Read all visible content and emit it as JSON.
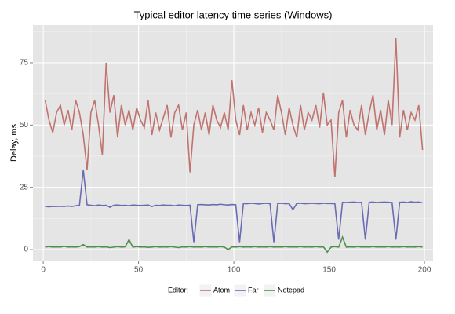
{
  "chart_data": {
    "type": "line",
    "title": "Typical editor latency time series (Windows)",
    "y_label": "Delay, ms",
    "legend_title": "Editor:",
    "legend": "bottom",
    "grid": true,
    "x": [
      1,
      3,
      5,
      7,
      9,
      11,
      13,
      15,
      17,
      19,
      21,
      23,
      25,
      27,
      29,
      31,
      33,
      35,
      37,
      39,
      41,
      43,
      45,
      47,
      49,
      51,
      53,
      55,
      57,
      59,
      61,
      63,
      65,
      67,
      69,
      71,
      73,
      75,
      77,
      79,
      81,
      83,
      85,
      87,
      89,
      91,
      93,
      95,
      97,
      99,
      101,
      103,
      105,
      107,
      109,
      111,
      113,
      115,
      117,
      119,
      121,
      123,
      125,
      127,
      129,
      131,
      133,
      135,
      137,
      139,
      141,
      143,
      145,
      147,
      149,
      151,
      153,
      155,
      157,
      159,
      161,
      163,
      165,
      167,
      169,
      171,
      173,
      175,
      177,
      179,
      181,
      183,
      185,
      187,
      189,
      191,
      193,
      195,
      197,
      199
    ],
    "xlim": [
      -5.4,
      204.5
    ],
    "xticks": [
      0,
      50,
      100,
      150,
      200
    ],
    "ylim": [
      -4.4,
      90.1
    ],
    "yticks": [
      0,
      25,
      50,
      75
    ],
    "series": [
      {
        "name": "Atom",
        "color": "#c0736f",
        "values": [
          60,
          52,
          47,
          55,
          58,
          50,
          56,
          48,
          60,
          55,
          46,
          32,
          55,
          60,
          50,
          38,
          75,
          55,
          62,
          45,
          58,
          50,
          56,
          48,
          57,
          52,
          49,
          60,
          46,
          55,
          48,
          53,
          58,
          45,
          55,
          58,
          48,
          55,
          31,
          50,
          56,
          48,
          55,
          46,
          58,
          52,
          49,
          55,
          48,
          68,
          52,
          46,
          58,
          48,
          55,
          50,
          57,
          47,
          55,
          52,
          48,
          62,
          55,
          46,
          57,
          50,
          45,
          58,
          48,
          55,
          52,
          58,
          49,
          63,
          50,
          52,
          29,
          55,
          60,
          45,
          56,
          50,
          48,
          58,
          46,
          55,
          62,
          48,
          56,
          46,
          60,
          50,
          85,
          45,
          56,
          48,
          55,
          52,
          58,
          40
        ]
      },
      {
        "name": "Far",
        "color": "#6b6bb5",
        "values": [
          17.3,
          17.2,
          17.3,
          17.3,
          17.4,
          17.3,
          17.5,
          17.3,
          17.6,
          17.8,
          32,
          18,
          17.8,
          17.6,
          17.9,
          17.7,
          17.8,
          17,
          17.8,
          17.9,
          17.7,
          17.8,
          17.6,
          17.9,
          17.8,
          17.7,
          17.8,
          17.9,
          17.3,
          17.8,
          17.7,
          17.9,
          17.8,
          17.8,
          17.6,
          17.9,
          17.8,
          17.7,
          17.8,
          3,
          18,
          18.1,
          18,
          17.9,
          18.1,
          18,
          18.2,
          18,
          17.9,
          18.1,
          18,
          3,
          18.5,
          18.4,
          18.6,
          18.5,
          18.3,
          18.5,
          18.6,
          18.4,
          3,
          18.5,
          18.6,
          18.4,
          18.5,
          16,
          18.5,
          18.6,
          18.4,
          18.5,
          18.6,
          18.5,
          18.4,
          18.6,
          18.5,
          18.5,
          18.4,
          4,
          19,
          18.9,
          19,
          19.1,
          18.9,
          19,
          4,
          19,
          19.1,
          18.9,
          19,
          19.1,
          19,
          18.9,
          4,
          19,
          19.1,
          18.9,
          19.2,
          19,
          19.1,
          18.8
        ]
      },
      {
        "name": "Notepad",
        "color": "#4e8f4e",
        "values": [
          1,
          1.2,
          1,
          1.1,
          1,
          1.3,
          1,
          1.1,
          1,
          1.2,
          2,
          1,
          1.1,
          1,
          1.2,
          1,
          1.1,
          0.8,
          1,
          1.2,
          1,
          1.1,
          4,
          1,
          1.2,
          1,
          1.1,
          0.9,
          1,
          1.2,
          1,
          1.1,
          1,
          1.2,
          1,
          0.8,
          1.1,
          1,
          1.2,
          1,
          1.1,
          1,
          1.2,
          1,
          1.1,
          1,
          1.2,
          1,
          0,
          1.1,
          1,
          1.2,
          1,
          1.1,
          1,
          1.2,
          1,
          1.1,
          1,
          1.2,
          1,
          1.1,
          1,
          1.2,
          1,
          1.1,
          1,
          1.2,
          1,
          1.1,
          1,
          1.2,
          1,
          1.1,
          -1,
          1,
          1.2,
          1,
          5,
          1,
          1.1,
          1,
          1.2,
          1,
          1.1,
          1,
          1.2,
          1,
          1.1,
          1,
          1.2,
          1,
          1.1,
          1,
          1.2,
          1,
          1.1,
          1,
          1.2,
          1
        ]
      }
    ]
  }
}
